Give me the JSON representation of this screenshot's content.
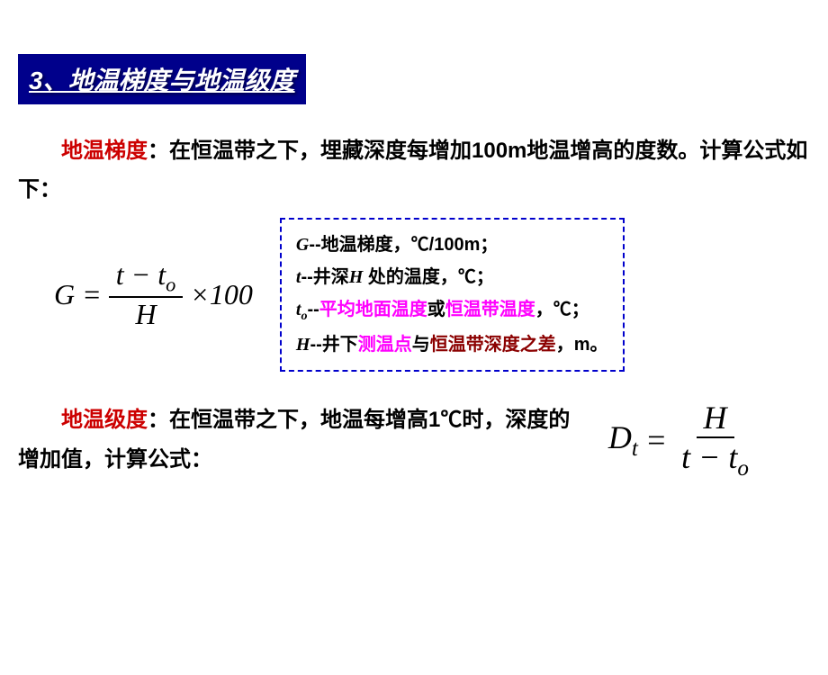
{
  "header": {
    "title": "3、地温梯度与地温级度"
  },
  "section1": {
    "term": "地温梯度",
    "text_before": "：在恒温带之下，埋藏深度每增加100m地温增高的度数。计算公式如下：",
    "formula": {
      "lhs": "G",
      "eq": "=",
      "frac_top": "t − t",
      "frac_top_sub": "o",
      "frac_bot": "H",
      "mult": "×100"
    }
  },
  "legend": {
    "line1_var": "G",
    "line1_text": "--地温梯度，℃/100m；",
    "line2_var": "t",
    "line2_text1": "--井深",
    "line2_var2": "H",
    "line2_text2": " 处的温度，℃；",
    "line3_var": "t",
    "line3_sub": "o",
    "line3_text1": "--",
    "line3_magenta1": "平均地面温度",
    "line3_text2": "或",
    "line3_magenta2": "恒温带温度",
    "line3_text3": "，℃；",
    "line4_var": "H",
    "line4_text1": "--井下",
    "line4_magenta": "测温点",
    "line4_text2": "与",
    "line4_darkred1": "恒温带",
    "line4_darkred2": "深度之差",
    "line4_text3": "，m。"
  },
  "section2": {
    "term": "地温级度",
    "text": "：在恒温带之下，地温每增高1℃时，深度的增加值，计算公式：",
    "formula": {
      "lhs": "D",
      "lhs_sub": "t",
      "eq": "=",
      "frac_top": "H",
      "frac_bot": "t − t",
      "frac_bot_sub": "o"
    }
  },
  "colors": {
    "header_bg": "#00008b",
    "header_text": "#ffffff",
    "term_red": "#cc0000",
    "magenta": "#ff00ff",
    "darkred": "#8b0000",
    "border_dash": "#0000cc"
  }
}
